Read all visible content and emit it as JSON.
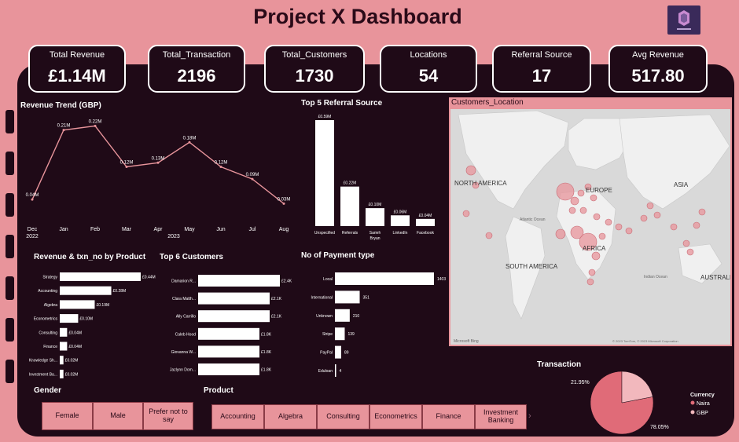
{
  "header": {
    "title": "Project X  Dashboard"
  },
  "kpis": [
    {
      "label": "Total Revenue",
      "value": "£1.14M"
    },
    {
      "label": "Total_Transaction",
      "value": "2196"
    },
    {
      "label": "Total_Customers",
      "value": "1730"
    },
    {
      "label": "Locations",
      "value": "54"
    },
    {
      "label": "Referral Source",
      "value": "17"
    },
    {
      "label": "Avg Revenue",
      "value": "517.80"
    }
  ],
  "sections": {
    "revenue_trend": "Revenue Trend (GBP)",
    "referral": "Top 5 Referral Source",
    "map": "Customers_Location",
    "product_rev": "Revenue & txn_no by Product",
    "top_customers": "Top 6 Customers",
    "payment": "No of Payment type",
    "transaction": "Transaction",
    "gender": "Gender",
    "product": "Product"
  },
  "map_labels": {
    "north_america": "NORTH AMERICA",
    "europe": "EUROPE",
    "asia": "ASIA",
    "africa": "AFRICA",
    "south_america": "SOUTH AMERICA",
    "australia": "AUSTRALIA",
    "atlantic": "Atlantic Ocean",
    "indian": "Indian Ocean",
    "microsoft": "Microsoft Bing",
    "copyright": "© 2023 TomTom, © 2023 Microsoft Corporation"
  },
  "slicers": {
    "gender": [
      "Female",
      "Male",
      "Prefer not to say"
    ],
    "product": [
      "Accounting",
      "Algebra",
      "Consulting",
      "Econometrics",
      "Finance",
      "Investment Banking"
    ]
  },
  "chart_data": [
    {
      "id": "revenue_trend",
      "type": "line",
      "title": "Revenue Trend (GBP)",
      "x": [
        "Dec",
        "Jan",
        "Feb",
        "Mar",
        "Apr",
        "May",
        "Jun",
        "Jul",
        "Aug"
      ],
      "year_labels": [
        "2022",
        "2023"
      ],
      "values": [
        0.04,
        0.21,
        0.22,
        0.12,
        0.13,
        0.18,
        0.12,
        0.09,
        0.03
      ],
      "labels": [
        "0.04M",
        "0.21M",
        "0.22M",
        "0.12M",
        "0.13M",
        "0.18M",
        "0.12M",
        "0.09M",
        "0.03M"
      ],
      "color": "#e8949b"
    },
    {
      "id": "referral",
      "type": "bar",
      "title": "Top 5 Referral Source",
      "categories": [
        "Unspecified",
        "Referrals",
        "Sarieh Bryan",
        "LinkedIn",
        "Facebook"
      ],
      "values": [
        0.59,
        0.22,
        0.1,
        0.06,
        0.04
      ],
      "labels": [
        "£0.59M",
        "£0.22M",
        "£0.10M",
        "£0.06M",
        "£0.04M"
      ],
      "color": "#ffffff"
    },
    {
      "id": "product_rev",
      "type": "bar",
      "orientation": "horizontal",
      "title": "Revenue & txn_no by Product",
      "categories": [
        "Strategy",
        "Accounting",
        "Algebra",
        "Econometrics",
        "Consulting",
        "Finance",
        "Knowledge Sh...",
        "Investment Ba..."
      ],
      "values": [
        0.44,
        0.28,
        0.19,
        0.1,
        0.04,
        0.04,
        0.02,
        0.02
      ],
      "labels": [
        "£0.44M",
        "£0.28M",
        "£0.19M",
        "£0.10M",
        "£0.04M",
        "£0.04M",
        "£0.02M",
        "£0.02M"
      ],
      "color": "#ffffff"
    },
    {
      "id": "top_customers",
      "type": "bar",
      "orientation": "horizontal",
      "title": "Top 6 Customers",
      "categories": [
        "Damarion R...",
        "Clara Matth...",
        "Ally Carrillo",
        "Caleb Hood",
        "Giovanna W...",
        "Jazlynn Dom..."
      ],
      "values": [
        2.4,
        2.1,
        2.1,
        1.8,
        1.8,
        1.8
      ],
      "labels": [
        "£2.4K",
        "£2.1K",
        "£2.1K",
        "£1.8K",
        "£1.8K",
        "£1.8K"
      ],
      "color": "#ffffff"
    },
    {
      "id": "payment",
      "type": "bar",
      "orientation": "horizontal",
      "title": "No of Payment type",
      "categories": [
        "Local",
        "International",
        "Unknown",
        "Stripe",
        "PayPal",
        "Eduloan"
      ],
      "values": [
        1403,
        351,
        210,
        139,
        89,
        4
      ],
      "labels": [
        "1403",
        "351",
        "210",
        "139",
        "89",
        "4"
      ],
      "color": "#ffffff"
    },
    {
      "id": "transaction",
      "type": "pie",
      "title": "Transaction",
      "categories": [
        "Naira",
        "GBP"
      ],
      "values": [
        78.05,
        21.95
      ],
      "labels": [
        "78.05%",
        "21.95%"
      ],
      "legend_title": "Currency",
      "colors": [
        "#e06b78",
        "#f2b8bd"
      ]
    }
  ]
}
